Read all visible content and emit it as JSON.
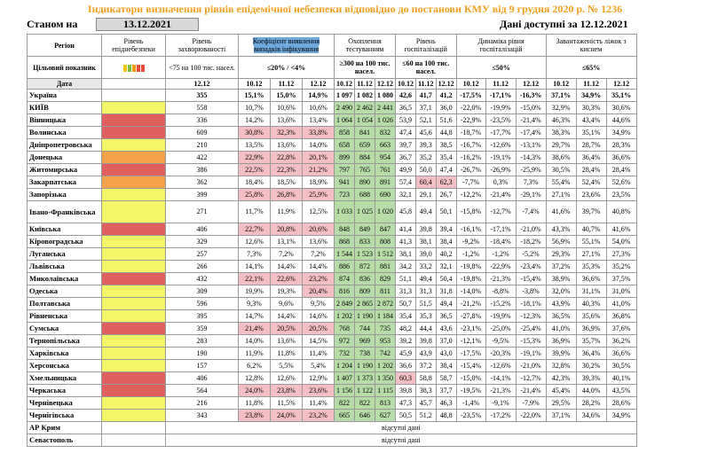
{
  "title": "Індикатори визначення рівнів епідемічної небезпеки відповідно до постанови КМУ від 9 грудня 2020 р. № 1236",
  "as_of_label": "Станом на",
  "as_of_date": "13.12.2021",
  "available_label": "Дані доступні за",
  "available_date": "12.12.2021",
  "headers": {
    "region": "Регіон",
    "level": "Рівень епіднебезпеки",
    "incidence": "Рівень захворюваності",
    "detection": "Коефіцієнт виявлення випадків інфікування",
    "testing": "Охоплення тестуванням",
    "hosp": "Рівень госпіталізацій",
    "hosp_dyn": "Динаміка рівня госпіталізацій",
    "oxygen": "Завантаженість ліжок з киснем",
    "target_label": "Цільовий показник",
    "t_incidence": "<75 на 100 тис. насел.",
    "t_detection": "≤20% / <4%",
    "t_testing": "≥300 на 100 тис. насел.",
    "t_hosp": "≤60 на 100 тис. насел.",
    "t_hosp_dyn": "≤50%",
    "t_oxygen": "≤65%",
    "date_label": "Дата",
    "d1": "12.12",
    "d10": "10.12",
    "d11": "11.12",
    "d12": "12.12"
  },
  "level_colors": {
    "red": "#e06060",
    "orange": "#f4a24a",
    "yellow": "#f5f568",
    "white": "#ffffff"
  },
  "ukraine": {
    "name": "Україна",
    "inc": "355",
    "det": [
      "15,1%",
      "15,0%",
      "14,9%"
    ],
    "test": [
      "1 097",
      "1 082",
      "1 080"
    ],
    "hosp": [
      "42,6",
      "41,7",
      "41,2"
    ],
    "dyn": [
      "-17,5%",
      "-17,1%",
      "-16,3%"
    ],
    "oxy": [
      "37,1%",
      "34,9%",
      "35,1%"
    ]
  },
  "rows": [
    {
      "name": "КИЇВ",
      "lvl": "yellow",
      "inc": "558",
      "det": [
        "10,7%",
        "10,6%",
        "10,6%"
      ],
      "detp": [
        0,
        0,
        0
      ],
      "test": [
        "2 490",
        "2 462",
        "2 441"
      ],
      "testg": [
        1,
        1,
        1
      ],
      "hosp": [
        "36,5",
        "37,1",
        "36,0"
      ],
      "hospp": [
        0,
        0,
        0
      ],
      "dyn": [
        "-22,0%",
        "-19,9%",
        "-15,0%"
      ],
      "oxy": [
        "32,9%",
        "30,3%",
        "30,6%"
      ]
    },
    {
      "name": "Вінницька",
      "lvl": "red",
      "inc": "336",
      "det": [
        "14,2%",
        "13,6%",
        "13,4%"
      ],
      "detp": [
        0,
        0,
        0
      ],
      "test": [
        "1 064",
        "1 054",
        "1 026"
      ],
      "testg": [
        1,
        1,
        1
      ],
      "hosp": [
        "53,9",
        "52,1",
        "51,6"
      ],
      "hospp": [
        0,
        0,
        0
      ],
      "dyn": [
        "-22,9%",
        "-23,5%",
        "-21,4%"
      ],
      "oxy": [
        "46,3%",
        "43,4%",
        "44,6%"
      ]
    },
    {
      "name": "Волинська",
      "lvl": "red",
      "inc": "609",
      "det": [
        "30,8%",
        "32,3%",
        "33,8%"
      ],
      "detp": [
        1,
        1,
        1
      ],
      "test": [
        "858",
        "841",
        "832"
      ],
      "testg": [
        1,
        1,
        1
      ],
      "hosp": [
        "47,4",
        "45,6",
        "44,8"
      ],
      "hospp": [
        0,
        0,
        0
      ],
      "dyn": [
        "-18,7%",
        "-17,7%",
        "-17,4%"
      ],
      "oxy": [
        "38,3%",
        "35,1%",
        "34,9%"
      ]
    },
    {
      "name": "Дніпропетровська",
      "lvl": "yellow",
      "inc": "210",
      "det": [
        "13,5%",
        "13,6%",
        "14,0%"
      ],
      "detp": [
        0,
        0,
        0
      ],
      "test": [
        "658",
        "659",
        "663"
      ],
      "testg": [
        1,
        1,
        1
      ],
      "hosp": [
        "39,7",
        "39,3",
        "38,5"
      ],
      "hospp": [
        0,
        0,
        0
      ],
      "dyn": [
        "-16,7%",
        "-12,6%",
        "-13,1%"
      ],
      "oxy": [
        "29,7%",
        "28,7%",
        "28,3%"
      ]
    },
    {
      "name": "Донецька",
      "lvl": "orange",
      "inc": "422",
      "det": [
        "22,9%",
        "22,8%",
        "20,1%"
      ],
      "detp": [
        1,
        1,
        1
      ],
      "test": [
        "899",
        "884",
        "954"
      ],
      "testg": [
        1,
        1,
        1
      ],
      "hosp": [
        "36,7",
        "35,2",
        "35,4"
      ],
      "hospp": [
        0,
        0,
        0
      ],
      "dyn": [
        "-16,2%",
        "-19,1%",
        "-14,3%"
      ],
      "oxy": [
        "38,6%",
        "36,4%",
        "36,6%"
      ]
    },
    {
      "name": "Житомирська",
      "lvl": "red",
      "inc": "386",
      "det": [
        "22,5%",
        "22,3%",
        "21,2%"
      ],
      "detp": [
        1,
        1,
        1
      ],
      "test": [
        "797",
        "765",
        "761"
      ],
      "testg": [
        1,
        1,
        1
      ],
      "hosp": [
        "49,9",
        "50,0",
        "47,4"
      ],
      "hospp": [
        0,
        0,
        0
      ],
      "dyn": [
        "-26,7%",
        "-26,9%",
        "-25,9%"
      ],
      "oxy": [
        "30,5%",
        "28,4%",
        "28,4%"
      ]
    },
    {
      "name": "Закарпатська",
      "lvl": "orange",
      "inc": "362",
      "det": [
        "18,4%",
        "18,5%",
        "18,9%"
      ],
      "detp": [
        0,
        0,
        0
      ],
      "test": [
        "941",
        "890",
        "891"
      ],
      "testg": [
        1,
        1,
        1
      ],
      "hosp": [
        "57,4",
        "60,4",
        "62,3"
      ],
      "hospp": [
        0,
        1,
        1
      ],
      "dyn": [
        "-7,7%",
        "0,3%",
        "7,3%"
      ],
      "oxy": [
        "55,4%",
        "52,4%",
        "52,6%"
      ]
    },
    {
      "name": "Запорізька",
      "lvl": "yellow",
      "inc": "399",
      "det": [
        "25,8%",
        "26,8%",
        "25,9%"
      ],
      "detp": [
        1,
        1,
        1
      ],
      "test": [
        "723",
        "688",
        "690"
      ],
      "testg": [
        1,
        1,
        1
      ],
      "hosp": [
        "32,1",
        "29,1",
        "26,7"
      ],
      "hospp": [
        0,
        0,
        0
      ],
      "dyn": [
        "-12,2%",
        "-21,4%",
        "-29,1%"
      ],
      "oxy": [
        "27,1%",
        "23,6%",
        "23,5%"
      ]
    },
    {
      "name": "Івано-Франківська",
      "lvl": "yellow",
      "inc": "271",
      "det": [
        "11,7%",
        "11,9%",
        "12,5%"
      ],
      "detp": [
        0,
        0,
        0
      ],
      "test": [
        "1 033",
        "1 025",
        "1 020"
      ],
      "testg": [
        1,
        1,
        1
      ],
      "hosp": [
        "45,8",
        "49,4",
        "50,1"
      ],
      "hospp": [
        0,
        0,
        0
      ],
      "dyn": [
        "-15,8%",
        "-12,7%",
        "-7,4%"
      ],
      "oxy": [
        "41,6%",
        "39,7%",
        "40,8%"
      ],
      "tall": true
    },
    {
      "name": "Київська",
      "lvl": "red",
      "inc": "406",
      "det": [
        "22,7%",
        "20,8%",
        "20,6%"
      ],
      "detp": [
        1,
        1,
        1
      ],
      "test": [
        "848",
        "849",
        "847"
      ],
      "testg": [
        1,
        1,
        1
      ],
      "hosp": [
        "41,4",
        "39,8",
        "39,4"
      ],
      "hospp": [
        0,
        0,
        0
      ],
      "dyn": [
        "-16,1%",
        "-17,1%",
        "-21,0%"
      ],
      "oxy": [
        "43,3%",
        "40,7%",
        "41,6%"
      ]
    },
    {
      "name": "Кіровоградська",
      "lvl": "yellow",
      "inc": "329",
      "det": [
        "12,6%",
        "13,1%",
        "13,6%"
      ],
      "detp": [
        0,
        0,
        0
      ],
      "test": [
        "868",
        "833",
        "808"
      ],
      "testg": [
        1,
        1,
        1
      ],
      "hosp": [
        "41,3",
        "38,1",
        "38,4"
      ],
      "hospp": [
        0,
        0,
        0
      ],
      "dyn": [
        "-9,2%",
        "-18,4%",
        "-18,2%"
      ],
      "oxy": [
        "56,9%",
        "55,1%",
        "54,0%"
      ]
    },
    {
      "name": "Луганська",
      "lvl": "yellow",
      "inc": "257",
      "det": [
        "7,3%",
        "7,2%",
        "7,2%"
      ],
      "detp": [
        0,
        0,
        0
      ],
      "test": [
        "1 544",
        "1 523",
        "1 512"
      ],
      "testg": [
        1,
        1,
        1
      ],
      "hosp": [
        "38,1",
        "39,0",
        "40,2"
      ],
      "hospp": [
        0,
        0,
        0
      ],
      "dyn": [
        "-1,2%",
        "-1,2%",
        "-5,2%"
      ],
      "oxy": [
        "29,3%",
        "27,1%",
        "27,3%"
      ]
    },
    {
      "name": "Львівська",
      "lvl": "yellow",
      "inc": "266",
      "det": [
        "14,1%",
        "14,4%",
        "14,4%"
      ],
      "detp": [
        0,
        0,
        0
      ],
      "test": [
        "886",
        "872",
        "881"
      ],
      "testg": [
        1,
        1,
        1
      ],
      "hosp": [
        "34,2",
        "33,2",
        "32,1"
      ],
      "hospp": [
        0,
        0,
        0
      ],
      "dyn": [
        "-19,8%",
        "-22,9%",
        "-23,4%"
      ],
      "oxy": [
        "37,2%",
        "35,3%",
        "35,2%"
      ]
    },
    {
      "name": "Миколаївська",
      "lvl": "red",
      "inc": "432",
      "det": [
        "22,1%",
        "22,6%",
        "23,2%"
      ],
      "detp": [
        1,
        1,
        1
      ],
      "test": [
        "874",
        "836",
        "829"
      ],
      "testg": [
        1,
        1,
        1
      ],
      "hosp": [
        "51,1",
        "49,4",
        "50,4"
      ],
      "hospp": [
        0,
        0,
        0
      ],
      "dyn": [
        "-19,8%",
        "-21,3%",
        "-15,4%"
      ],
      "oxy": [
        "38,9%",
        "36,6%",
        "37,5%"
      ]
    },
    {
      "name": "Одеська",
      "lvl": "yellow",
      "inc": "309",
      "det": [
        "19,9%",
        "19,3%",
        "20,4%"
      ],
      "detp": [
        0,
        0,
        1
      ],
      "test": [
        "816",
        "809",
        "811"
      ],
      "testg": [
        1,
        1,
        1
      ],
      "hosp": [
        "31,3",
        "31,3",
        "31,8"
      ],
      "hospp": [
        0,
        0,
        0
      ],
      "dyn": [
        "-14,0%",
        "-8,8%",
        "-3,8%"
      ],
      "oxy": [
        "32,0%",
        "31,1%",
        "31,0%"
      ]
    },
    {
      "name": "Полтавська",
      "lvl": "yellow",
      "inc": "596",
      "det": [
        "9,3%",
        "9,6%",
        "9,5%"
      ],
      "detp": [
        0,
        0,
        0
      ],
      "test": [
        "2 849",
        "2 865",
        "2 872"
      ],
      "testg": [
        1,
        1,
        1
      ],
      "hosp": [
        "50,7",
        "51,5",
        "49,4"
      ],
      "hospp": [
        0,
        0,
        0
      ],
      "dyn": [
        "-21,2%",
        "-15,2%",
        "-18,1%"
      ],
      "oxy": [
        "43,9%",
        "40,3%",
        "41,0%"
      ]
    },
    {
      "name": "Рівненська",
      "lvl": "yellow",
      "inc": "395",
      "det": [
        "14,7%",
        "14,4%",
        "14,6%"
      ],
      "detp": [
        0,
        0,
        0
      ],
      "test": [
        "1 202",
        "1 190",
        "1 184"
      ],
      "testg": [
        1,
        1,
        1
      ],
      "hosp": [
        "35,4",
        "35,3",
        "36,5"
      ],
      "hospp": [
        0,
        0,
        0
      ],
      "dyn": [
        "-27,8%",
        "-19,9%",
        "-12,3%"
      ],
      "oxy": [
        "36,5%",
        "35,6%",
        "36,8%"
      ]
    },
    {
      "name": "Сумська",
      "lvl": "red",
      "inc": "359",
      "det": [
        "21,4%",
        "20,5%",
        "20,5%"
      ],
      "detp": [
        1,
        1,
        1
      ],
      "test": [
        "768",
        "744",
        "735"
      ],
      "testg": [
        1,
        1,
        1
      ],
      "hosp": [
        "48,2",
        "44,4",
        "43,6"
      ],
      "hospp": [
        0,
        0,
        0
      ],
      "dyn": [
        "-23,1%",
        "-25,0%",
        "-25,4%"
      ],
      "oxy": [
        "41,0%",
        "36,9%",
        "37,6%"
      ]
    },
    {
      "name": "Тернопільська",
      "lvl": "yellow",
      "inc": "283",
      "det": [
        "14,0%",
        "13,6%",
        "14,5%"
      ],
      "detp": [
        0,
        0,
        0
      ],
      "test": [
        "972",
        "969",
        "953"
      ],
      "testg": [
        1,
        1,
        1
      ],
      "hosp": [
        "39,2",
        "39,8",
        "37,0"
      ],
      "hospp": [
        0,
        0,
        0
      ],
      "dyn": [
        "-12,1%",
        "-9,5%",
        "-15,3%"
      ],
      "oxy": [
        "36,9%",
        "35,7%",
        "36,2%"
      ]
    },
    {
      "name": "Харківська",
      "lvl": "yellow",
      "inc": "190",
      "det": [
        "11,9%",
        "11,8%",
        "11,4%"
      ],
      "detp": [
        0,
        0,
        0
      ],
      "test": [
        "732",
        "738",
        "742"
      ],
      "testg": [
        1,
        1,
        1
      ],
      "hosp": [
        "45,9",
        "43,9",
        "43,0"
      ],
      "hospp": [
        0,
        0,
        0
      ],
      "dyn": [
        "-17,5%",
        "-20,3%",
        "-19,1%"
      ],
      "oxy": [
        "39,9%",
        "36,4%",
        "36,6%"
      ]
    },
    {
      "name": "Херсонська",
      "lvl": "yellow",
      "inc": "157",
      "det": [
        "6,2%",
        "5,5%",
        "5,4%"
      ],
      "detp": [
        0,
        0,
        0
      ],
      "test": [
        "1 204",
        "1 190",
        "1 202"
      ],
      "testg": [
        1,
        1,
        1
      ],
      "hosp": [
        "36,6",
        "37,2",
        "38,4"
      ],
      "hospp": [
        0,
        0,
        0
      ],
      "dyn": [
        "-15,4%",
        "-12,6%",
        "-21,0%"
      ],
      "oxy": [
        "32,8%",
        "30,2%",
        "30,5%"
      ]
    },
    {
      "name": "Хмельницька",
      "lvl": "red",
      "inc": "406",
      "det": [
        "12,8%",
        "12,6%",
        "12,9%"
      ],
      "detp": [
        0,
        0,
        0
      ],
      "test": [
        "1 407",
        "1 373",
        "1 350"
      ],
      "testg": [
        1,
        1,
        1
      ],
      "hosp": [
        "60,3",
        "58,8",
        "58,7"
      ],
      "hospp": [
        1,
        0,
        0
      ],
      "dyn": [
        "-15,0%",
        "-14,1%",
        "-12,7%"
      ],
      "oxy": [
        "42,3%",
        "39,3%",
        "40,1%"
      ]
    },
    {
      "name": "Черкаська",
      "lvl": "red",
      "inc": "564",
      "det": [
        "24,0%",
        "23,8%",
        "23,6%"
      ],
      "detp": [
        1,
        1,
        1
      ],
      "test": [
        "1 156",
        "1 122",
        "1 115"
      ],
      "testg": [
        1,
        1,
        1
      ],
      "hosp": [
        "39,8",
        "38,3",
        "37,7"
      ],
      "hospp": [
        0,
        0,
        0
      ],
      "dyn": [
        "-19,5%",
        "-21,3%",
        "-21,4%"
      ],
      "oxy": [
        "45,4%",
        "44,0%",
        "43,5%"
      ]
    },
    {
      "name": "Чернівецька",
      "lvl": "yellow",
      "inc": "216",
      "det": [
        "11,8%",
        "11,5%",
        "11,4%"
      ],
      "detp": [
        0,
        0,
        0
      ],
      "test": [
        "822",
        "822",
        "813"
      ],
      "testg": [
        1,
        1,
        1
      ],
      "hosp": [
        "47,3",
        "45,7",
        "46,3"
      ],
      "hospp": [
        0,
        0,
        0
      ],
      "dyn": [
        "-1,4%",
        "-9,1%",
        "-7,9%"
      ],
      "oxy": [
        "29,5%",
        "28,2%",
        "28,6%"
      ]
    },
    {
      "name": "Чернігівська",
      "lvl": "yellow",
      "inc": "343",
      "det": [
        "23,8%",
        "24,0%",
        "23,2%"
      ],
      "detp": [
        1,
        1,
        1
      ],
      "test": [
        "665",
        "646",
        "627"
      ],
      "testg": [
        1,
        1,
        1
      ],
      "hosp": [
        "50,5",
        "51,2",
        "48,8"
      ],
      "hospp": [
        0,
        0,
        0
      ],
      "dyn": [
        "-23,5%",
        "-17,2%",
        "-22,0%"
      ],
      "oxy": [
        "37,1%",
        "34,6%",
        "34,9%"
      ]
    }
  ],
  "missing": [
    {
      "name": "АР Крим",
      "text": "відсутні дані"
    },
    {
      "name": "Севастополь",
      "text": "відсутні дані"
    }
  ]
}
